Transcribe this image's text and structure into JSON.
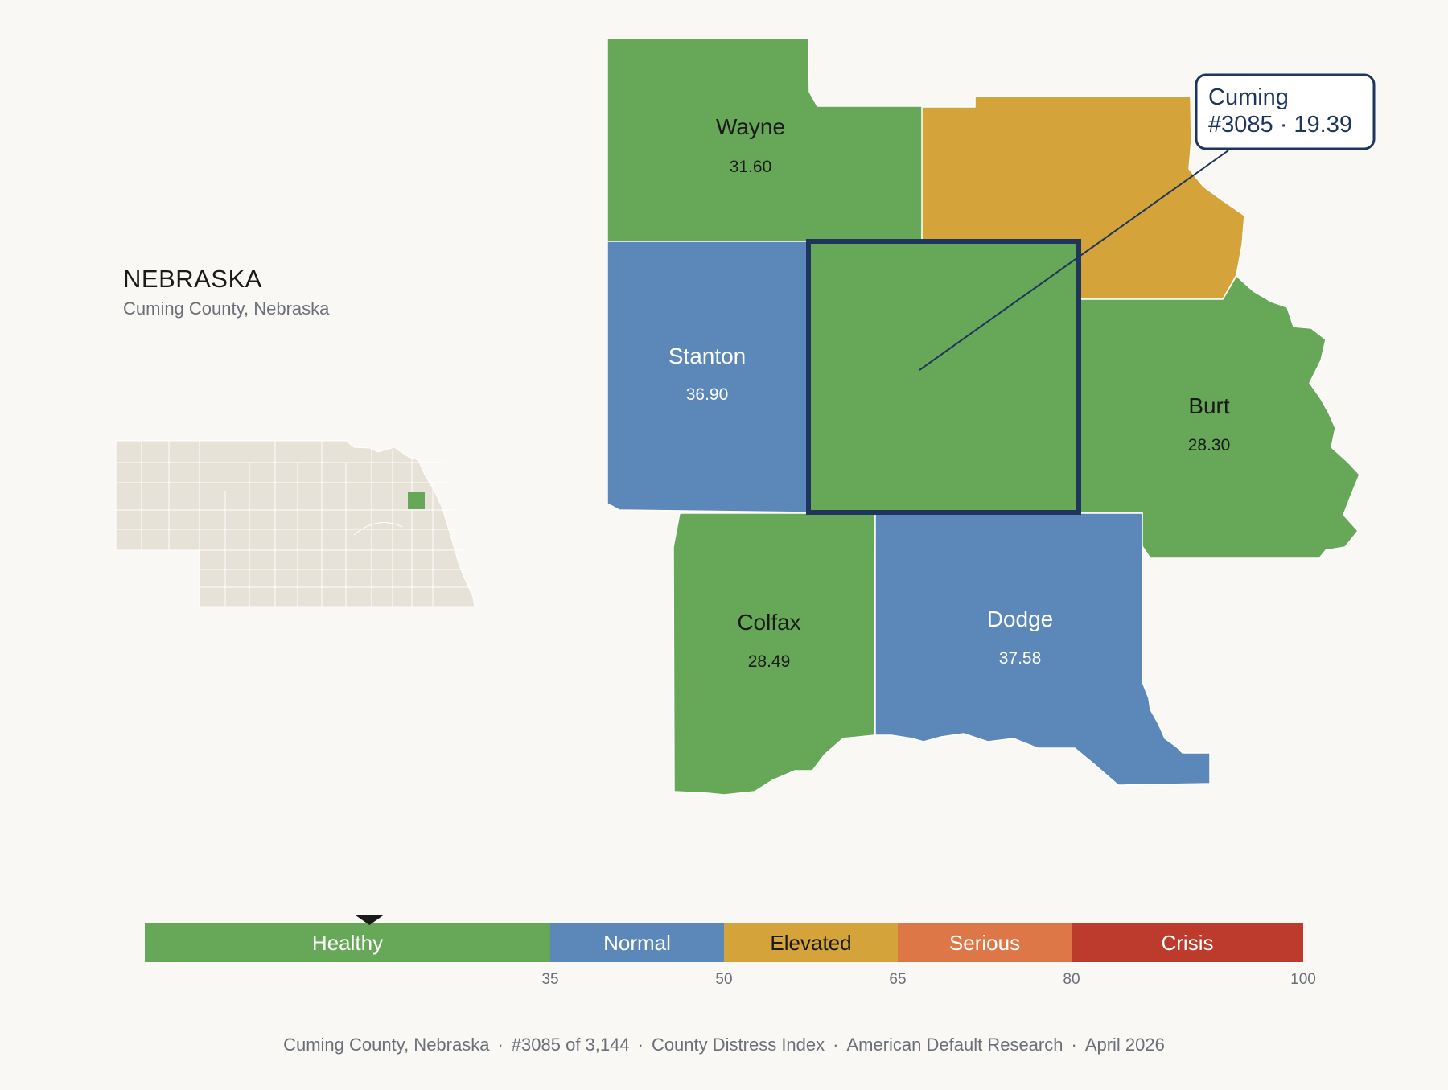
{
  "header": {
    "state": "NEBRASKA",
    "subtitle": "Cuming County, Nebraska"
  },
  "colors": {
    "background": "#f9f8f5",
    "healthy": "#67a758",
    "normal": "#5b88b9",
    "elevated": "#d4a33a",
    "serious": "#de7747",
    "crisis": "#bd3b2c",
    "highlight_border": "#1e355c",
    "state_fill": "#e7e2d7"
  },
  "counties": [
    {
      "name": "Wayne",
      "value": "31.60",
      "category": "healthy"
    },
    {
      "name": "",
      "value": "",
      "category": "elevated"
    },
    {
      "name": "Stanton",
      "value": "36.90",
      "category": "normal"
    },
    {
      "name": "Burt",
      "value": "28.30",
      "category": "healthy"
    },
    {
      "name": "Colfax",
      "value": "28.49",
      "category": "healthy"
    },
    {
      "name": "Dodge",
      "value": "37.58",
      "category": "normal"
    }
  ],
  "highlight": {
    "name": "Cuming",
    "rank": "#3085",
    "value": "19.39",
    "line2": "#3085 · 19.39",
    "score": 19.39,
    "category": "healthy"
  },
  "scale": {
    "min": 0,
    "max": 100,
    "segments": [
      {
        "label": "Healthy",
        "from": 0,
        "to": 35,
        "category": "healthy"
      },
      {
        "label": "Normal",
        "from": 35,
        "to": 50,
        "category": "normal"
      },
      {
        "label": "Elevated",
        "from": 50,
        "to": 65,
        "category": "elevated"
      },
      {
        "label": "Serious",
        "from": 65,
        "to": 80,
        "category": "serious"
      },
      {
        "label": "Crisis",
        "from": 80,
        "to": 100,
        "category": "crisis"
      }
    ],
    "ticks": [
      "35",
      "50",
      "65",
      "80",
      "100"
    ],
    "pointer_value": 19.39
  },
  "footer": {
    "county": "Cuming County, Nebraska",
    "rank": "#3085 of 3,144",
    "index": "County Distress Index",
    "source": "American Default Research",
    "date": "April 2026"
  }
}
